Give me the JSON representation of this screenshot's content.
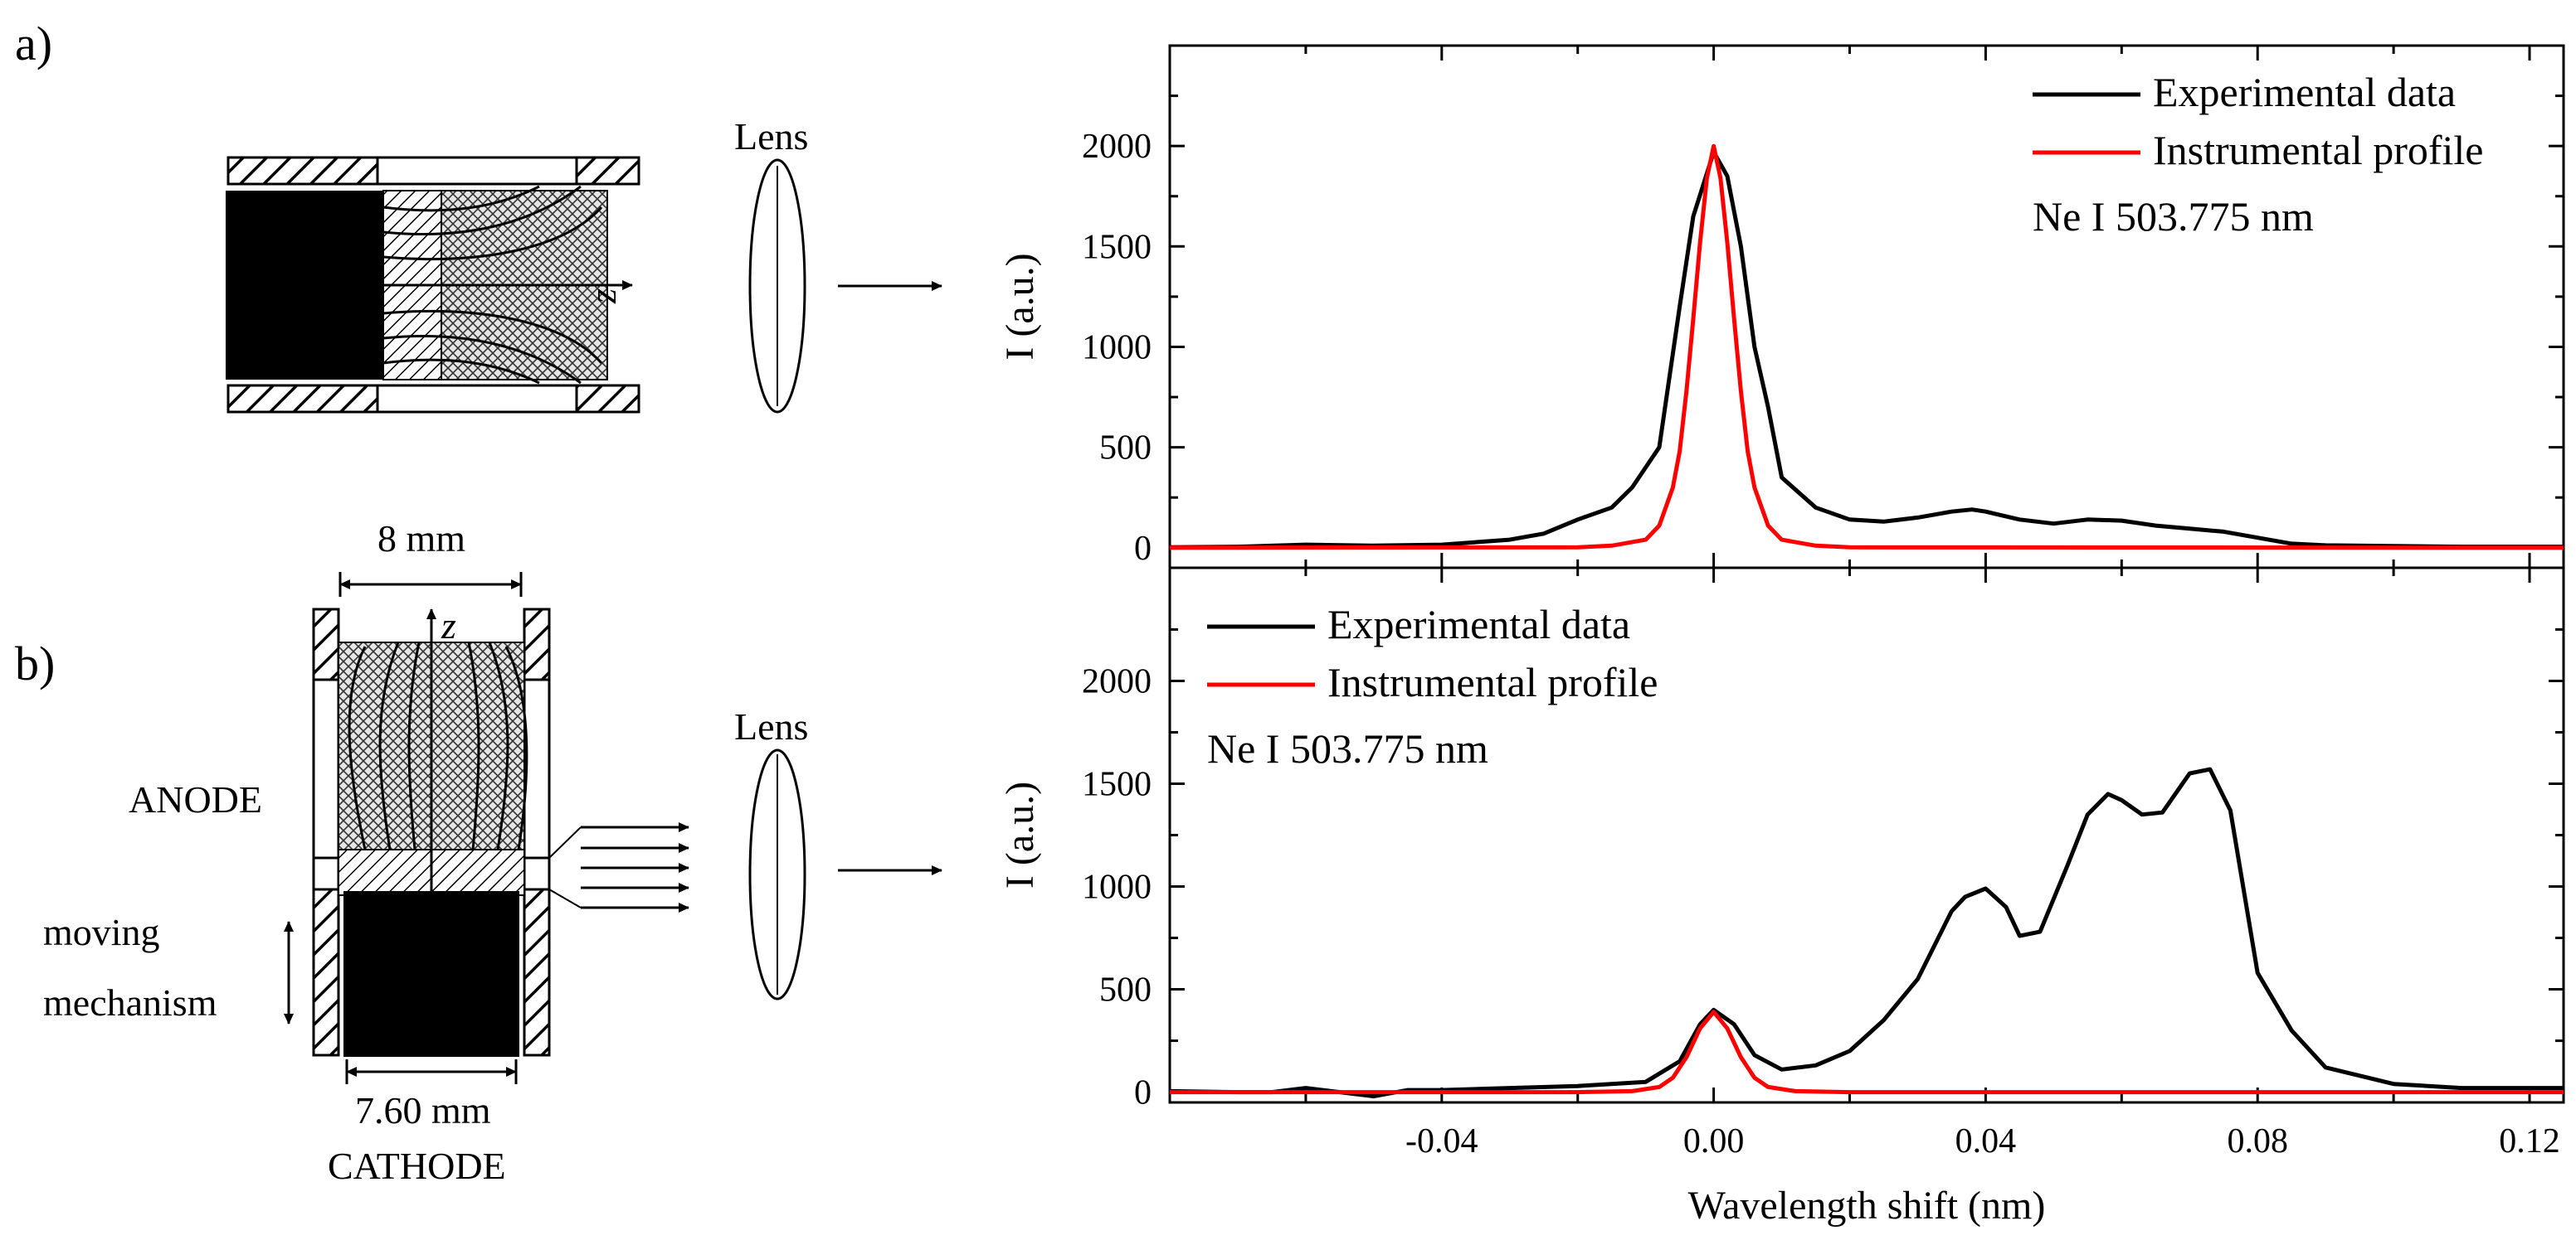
{
  "panel_labels": {
    "a": "a)",
    "b": "b)"
  },
  "diagram": {
    "lens_a": "Lens",
    "lens_b": "Lens",
    "axis_z_a": "z",
    "axis_z_b": "z",
    "width_top": "8 mm",
    "width_bottom": "7.60 mm",
    "anode": "ANODE",
    "cathode": "CATHODE",
    "moving_line1": "moving",
    "moving_line2": "mechanism"
  },
  "chart_data": [
    {
      "type": "line",
      "panel": "a",
      "title": "",
      "xlabel": "Wavelength shift (nm)",
      "ylabel": "I (a.u.)",
      "xlim": [
        -0.08,
        0.125
      ],
      "ylim": [
        -100,
        2500
      ],
      "xticks": [
        -0.04,
        0.0,
        0.04,
        0.08,
        0.12
      ],
      "xtick_labels": [
        "-0.04",
        "0.00",
        "0.04",
        "0.08",
        "0.12"
      ],
      "yticks": [
        0,
        500,
        1000,
        1500,
        2000
      ],
      "ytick_labels": [
        "0",
        "500",
        "1000",
        "1500",
        "2000"
      ],
      "legend": {
        "position": "top-right",
        "entries": [
          "Experimental data",
          "Instrumental profile"
        ],
        "annotation": "Ne I 503.775 nm"
      },
      "series": [
        {
          "name": "Experimental data",
          "color": "#000000",
          "x": [
            -0.08,
            -0.07,
            -0.06,
            -0.05,
            -0.04,
            -0.03,
            -0.025,
            -0.02,
            -0.015,
            -0.012,
            -0.008,
            -0.005,
            -0.003,
            0.0,
            0.002,
            0.004,
            0.006,
            0.008,
            0.01,
            0.015,
            0.02,
            0.025,
            0.03,
            0.035,
            0.038,
            0.04,
            0.045,
            0.05,
            0.055,
            0.06,
            0.065,
            0.07,
            0.075,
            0.08,
            0.085,
            0.09,
            0.1,
            0.11,
            0.12,
            0.125
          ],
          "y": [
            2,
            5,
            15,
            10,
            15,
            40,
            70,
            140,
            200,
            300,
            500,
            1200,
            1650,
            1970,
            1850,
            1500,
            1000,
            700,
            350,
            200,
            140,
            130,
            150,
            180,
            190,
            180,
            140,
            120,
            140,
            135,
            110,
            95,
            80,
            50,
            20,
            12,
            8,
            5,
            5,
            5
          ]
        },
        {
          "name": "Instrumental profile",
          "color": "#ff0000",
          "x": [
            -0.08,
            -0.02,
            -0.015,
            -0.01,
            -0.008,
            -0.006,
            -0.005,
            -0.004,
            -0.003,
            -0.002,
            -0.001,
            0.0,
            0.001,
            0.002,
            0.003,
            0.004,
            0.005,
            0.006,
            0.008,
            0.01,
            0.015,
            0.02,
            0.125
          ],
          "y": [
            0,
            2,
            10,
            40,
            110,
            300,
            480,
            780,
            1140,
            1520,
            1840,
            2000,
            1840,
            1520,
            1140,
            780,
            480,
            300,
            110,
            40,
            10,
            2,
            0
          ]
        }
      ]
    },
    {
      "type": "line",
      "panel": "b",
      "title": "",
      "xlabel": "Wavelength shift (nm)",
      "ylabel": "I (a.u.)",
      "xlim": [
        -0.08,
        0.125
      ],
      "ylim": [
        -50,
        2550
      ],
      "xticks": [
        -0.04,
        0.0,
        0.04,
        0.08,
        0.12
      ],
      "xtick_labels": [
        "-0.04",
        "0.00",
        "0.04",
        "0.08",
        "0.12"
      ],
      "yticks": [
        0,
        500,
        1000,
        1500,
        2000
      ],
      "ytick_labels": [
        "0",
        "500",
        "1000",
        "1500",
        "2000"
      ],
      "legend": {
        "position": "top-left",
        "entries": [
          "Experimental data",
          "Instrumental profile"
        ],
        "annotation": "Ne I 503.775 nm"
      },
      "series": [
        {
          "name": "Experimental data",
          "color": "#000000",
          "x": [
            -0.08,
            -0.07,
            -0.065,
            -0.06,
            -0.055,
            -0.05,
            -0.045,
            -0.04,
            -0.03,
            -0.02,
            -0.01,
            -0.005,
            -0.002,
            0.0,
            0.003,
            0.006,
            0.01,
            0.015,
            0.02,
            0.025,
            0.03,
            0.035,
            0.037,
            0.04,
            0.043,
            0.045,
            0.048,
            0.052,
            0.055,
            0.058,
            0.06,
            0.063,
            0.066,
            0.07,
            0.073,
            0.076,
            0.08,
            0.085,
            0.09,
            0.1,
            0.11,
            0.125
          ],
          "y": [
            5,
            0,
            0,
            20,
            0,
            -20,
            10,
            10,
            20,
            30,
            50,
            150,
            330,
            400,
            330,
            180,
            110,
            130,
            200,
            350,
            550,
            880,
            950,
            990,
            900,
            760,
            780,
            1100,
            1350,
            1450,
            1420,
            1350,
            1360,
            1550,
            1570,
            1370,
            580,
            300,
            120,
            40,
            20,
            20
          ]
        },
        {
          "name": "Instrumental profile",
          "color": "#ff0000",
          "x": [
            -0.08,
            -0.02,
            -0.012,
            -0.008,
            -0.006,
            -0.004,
            -0.002,
            0.0,
            0.002,
            0.004,
            0.006,
            0.008,
            0.012,
            0.02,
            0.125
          ],
          "y": [
            0,
            0,
            5,
            25,
            70,
            170,
            310,
            390,
            310,
            170,
            70,
            25,
            5,
            0,
            0
          ]
        }
      ]
    }
  ]
}
